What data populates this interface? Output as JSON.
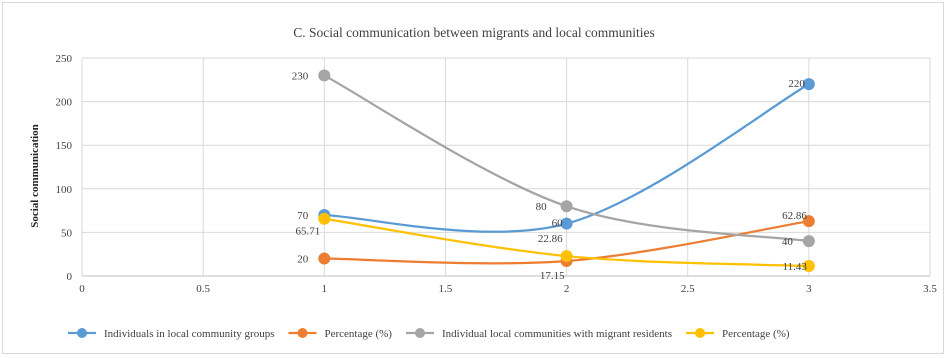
{
  "chart_data": {
    "type": "scatter",
    "title": "C. Social communication between migrants and local communities",
    "ylabel": "Social communication",
    "xlabel": "",
    "xlim": [
      0,
      3.5
    ],
    "ylim": [
      0,
      250
    ],
    "xticks": [
      "0",
      "0.5",
      "1",
      "1.5",
      "2",
      "2.5",
      "3",
      "3.5"
    ],
    "yticks": [
      "0",
      "50",
      "100",
      "150",
      "200",
      "250"
    ],
    "grid": true,
    "legend_position": "bottom",
    "series": [
      {
        "name": "Individuals in local community groups",
        "color": "#5b9bd5",
        "x": [
          1,
          2,
          3
        ],
        "y": [
          70,
          60,
          220
        ],
        "labels": [
          "70",
          "60",
          "220"
        ]
      },
      {
        "name": "Percentage (%)",
        "color": "#ed7d31",
        "x": [
          1,
          2,
          3
        ],
        "y": [
          20,
          17.15,
          62.86
        ],
        "labels": [
          "20",
          "17.15",
          "62.86"
        ]
      },
      {
        "name": "Individual local communities with migrant residents",
        "color": "#a5a5a5",
        "x": [
          1,
          2,
          3
        ],
        "y": [
          230,
          80,
          40
        ],
        "labels": [
          "230",
          "80",
          "40"
        ]
      },
      {
        "name": "Percentage (%)",
        "color": "#ffc000",
        "x": [
          1,
          2,
          3
        ],
        "y": [
          65.71,
          22.86,
          11.43
        ],
        "labels": [
          "65.71",
          "22.86",
          "11.43"
        ]
      }
    ]
  }
}
